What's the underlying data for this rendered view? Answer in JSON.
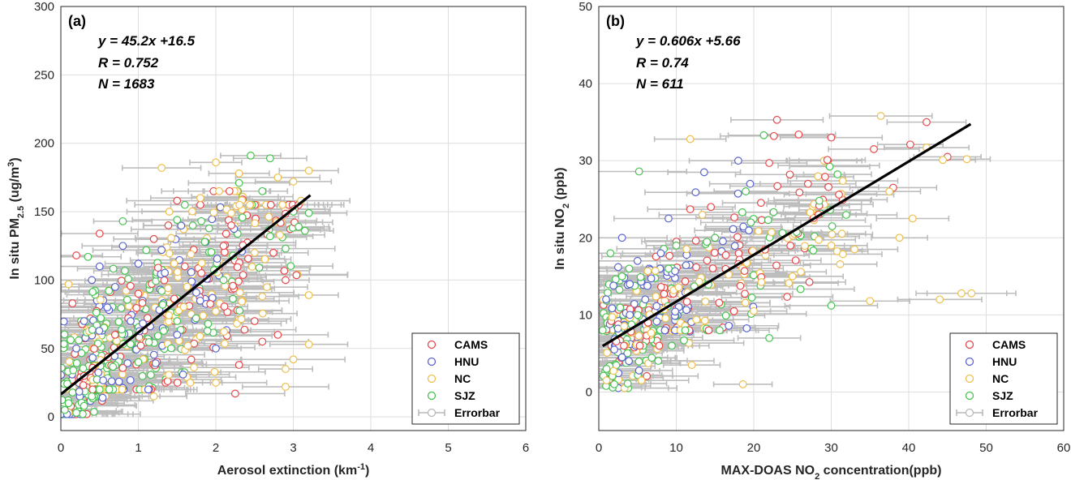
{
  "chart_data": [
    {
      "type": "scatter",
      "panel_label": "(a)",
      "equation": "y = 45.2x +16.5",
      "r_text": "R = 0.752",
      "n_text": "N = 1683",
      "xlabel_main": "Aerosol extinction (km",
      "xlabel_sup": "-1",
      "xlabel_end": ")",
      "ylabel_main": "In situ PM",
      "ylabel_sub": "2.5",
      "ylabel_mid": " (ug/m",
      "ylabel_sup": "3",
      "ylabel_end": ")",
      "xlim": [
        0,
        6
      ],
      "ylim": [
        -10,
        300
      ],
      "xticks": [
        0,
        1,
        2,
        3,
        4,
        5,
        6
      ],
      "yticks": [
        0,
        50,
        100,
        150,
        200,
        250,
        300
      ],
      "fit": {
        "slope": 45.2,
        "intercept": 16.5,
        "x_range": [
          0,
          3.22
        ]
      },
      "legend": [
        {
          "label": "CAMS",
          "color": "#e8474a"
        },
        {
          "label": "HNU",
          "color": "#5a64d0"
        },
        {
          "label": "NC",
          "color": "#eebf4a"
        },
        {
          "label": "SJZ",
          "color": "#46c350"
        },
        {
          "label": "Errorbar",
          "color": "#b9b9b9"
        }
      ],
      "legend_position": "bottom-right",
      "grid": true,
      "series": [
        {
          "name": "CAMS",
          "color": "#e8474a",
          "points": [
            [
              0.2,
              118
            ],
            [
              0.5,
              134
            ],
            [
              0.15,
              83
            ],
            [
              1.5,
              158
            ],
            [
              1.8,
              155
            ],
            [
              2.2,
              140
            ],
            [
              2.1,
              125
            ],
            [
              2.3,
              38
            ],
            [
              2.5,
              70
            ],
            [
              2.9,
              100
            ],
            [
              1.0,
              90
            ],
            [
              0.7,
              60
            ],
            [
              0.3,
              30
            ],
            [
              2.25,
              17
            ],
            [
              1.6,
              110
            ],
            [
              2.6,
              55
            ],
            [
              1.2,
              130
            ],
            [
              2.8,
              60
            ]
          ]
        },
        {
          "name": "HNU",
          "color": "#5a64d0",
          "points": [
            [
              0.5,
              110
            ],
            [
              0.4,
              100
            ],
            [
              0.8,
              125
            ],
            [
              1.0,
              112
            ],
            [
              0.6,
              80
            ],
            [
              0.3,
              70
            ],
            [
              0.2,
              50
            ],
            [
              0.9,
              70
            ],
            [
              1.5,
              60
            ],
            [
              2.0,
              50
            ],
            [
              0.7,
              95
            ],
            [
              1.3,
              122
            ]
          ]
        },
        {
          "name": "NC",
          "color": "#eebf4a",
          "points": [
            [
              1.3,
              182
            ],
            [
              2.0,
              186
            ],
            [
              2.3,
              178
            ],
            [
              2.8,
              175
            ],
            [
              3.0,
              172
            ],
            [
              3.2,
              180
            ],
            [
              3.2,
              89
            ],
            [
              3.2,
              53
            ],
            [
              3.0,
              42
            ],
            [
              2.9,
              22
            ],
            [
              2.9,
              35
            ],
            [
              1.2,
              15
            ],
            [
              2.0,
              25
            ],
            [
              2.5,
              120
            ],
            [
              1.8,
              160
            ],
            [
              3.1,
              158
            ],
            [
              0.1,
              97
            ],
            [
              1.4,
              150
            ],
            [
              2.6,
              88
            ]
          ]
        },
        {
          "name": "SJZ",
          "color": "#46c350",
          "points": [
            [
              2.45,
              191
            ],
            [
              2.7,
              189
            ],
            [
              2.6,
              165
            ],
            [
              3.0,
              150
            ],
            [
              3.15,
              136
            ],
            [
              3.2,
              149
            ],
            [
              0.35,
              117
            ],
            [
              0.8,
              143
            ],
            [
              1.5,
              144
            ],
            [
              2.3,
              171
            ],
            [
              1.6,
              155
            ],
            [
              0.05,
              5
            ],
            [
              0.1,
              10
            ],
            [
              0.2,
              3
            ],
            [
              0.3,
              8
            ],
            [
              0.4,
              15
            ],
            [
              0.5,
              20
            ],
            [
              1.0,
              40
            ],
            [
              1.5,
              70
            ],
            [
              2.1,
              100
            ],
            [
              2.9,
              123
            ],
            [
              1.9,
              68
            ],
            [
              2.7,
              132
            ]
          ]
        }
      ],
      "dense": [
        {
          "colors": [
            "#46c350",
            "#46c350",
            "#46c350",
            "#eebf4a",
            "#e8474a",
            "#5a64d0"
          ],
          "x_range": [
            0,
            0.6
          ],
          "y_range": [
            2,
            90
          ],
          "count": 160
        },
        {
          "colors": [
            "#46c350",
            "#46c350",
            "#eebf4a",
            "#e8474a",
            "#5a64d0"
          ],
          "x_range": [
            0.4,
            1.4
          ],
          "y_range": [
            20,
            140
          ],
          "count": 180
        },
        {
          "colors": [
            "#46c350",
            "#eebf4a",
            "#eebf4a",
            "#e8474a",
            "#5a64d0"
          ],
          "x_range": [
            1.2,
            2.4
          ],
          "y_range": [
            25,
            165
          ],
          "count": 160
        },
        {
          "colors": [
            "#46c350",
            "#eebf4a",
            "#e8474a"
          ],
          "x_range": [
            2.2,
            3.1
          ],
          "y_range": [
            30,
            155
          ],
          "count": 60
        }
      ]
    },
    {
      "type": "scatter",
      "panel_label": "(b)",
      "equation": "y = 0.606x +5.66",
      "r_text": "R = 0.74",
      "n_text": "N = 611",
      "xlabel_main": "MAX-DOAS NO",
      "xlabel_sub": "2",
      "xlabel_end": " concentration(ppb)",
      "ylabel_main": "In situ NO",
      "ylabel_sub": "2",
      "ylabel_end": " (ppb)",
      "xlim": [
        0,
        60
      ],
      "ylim": [
        -5,
        50
      ],
      "xticks": [
        0,
        10,
        20,
        30,
        40,
        50,
        60
      ],
      "yticks": [
        0,
        10,
        20,
        30,
        40,
        50
      ],
      "fit": {
        "slope": 0.606,
        "intercept": 5.66,
        "x_range": [
          0.5,
          48
        ]
      },
      "legend": [
        {
          "label": "CAMS",
          "color": "#e8474a"
        },
        {
          "label": "HNU",
          "color": "#5a64d0"
        },
        {
          "label": "NC",
          "color": "#eebf4a"
        },
        {
          "label": "SJZ",
          "color": "#46c350"
        },
        {
          "label": "Errorbar",
          "color": "#b9b9b9"
        }
      ],
      "legend_position": "bottom-right",
      "grid": true,
      "series": [
        {
          "name": "CAMS",
          "color": "#e8474a",
          "points": [
            [
              23,
              35.3
            ],
            [
              22.6,
              33.2
            ],
            [
              25.8,
              33.4
            ],
            [
              30,
              33
            ],
            [
              42.3,
              35
            ],
            [
              40.2,
              32.1
            ],
            [
              35.5,
              31.5
            ],
            [
              45,
              30.5
            ],
            [
              29.5,
              30.1
            ],
            [
              22,
              29.7
            ],
            [
              38,
              26.5
            ],
            [
              11.8,
              23.7
            ],
            [
              31,
              25.6
            ],
            [
              27,
              27
            ]
          ]
        },
        {
          "name": "HNU",
          "color": "#5a64d0",
          "points": [
            [
              18,
              30
            ],
            [
              13.6,
              28.5
            ],
            [
              1.9,
              13.8
            ],
            [
              2.5,
              16.2
            ],
            [
              5,
              17
            ],
            [
              9,
              22.5
            ],
            [
              3,
              20
            ],
            [
              2,
              5.5
            ],
            [
              3,
              4.5
            ],
            [
              4,
              10
            ],
            [
              6,
              12
            ],
            [
              8,
              18
            ],
            [
              12.5,
              25.9
            ],
            [
              4,
              14
            ]
          ]
        },
        {
          "name": "NC",
          "color": "#eebf4a",
          "points": [
            [
              36.4,
              35.8
            ],
            [
              11.8,
              32.8
            ],
            [
              42.3,
              31.7
            ],
            [
              44.4,
              30.1
            ],
            [
              47.5,
              30.2
            ],
            [
              37.5,
              26
            ],
            [
              40.5,
              22.5
            ],
            [
              38.8,
              20
            ],
            [
              46.8,
              12.8
            ],
            [
              48.1,
              12.8
            ],
            [
              44,
              12
            ],
            [
              35,
              11.8
            ],
            [
              18.6,
              1
            ],
            [
              12,
              3.5
            ],
            [
              1,
              1.5
            ],
            [
              5.5,
              1.5
            ],
            [
              30,
              19
            ],
            [
              33,
              18.5
            ],
            [
              25,
              15
            ],
            [
              20,
              10.5
            ]
          ]
        },
        {
          "name": "SJZ",
          "color": "#46c350",
          "points": [
            [
              21.3,
              33.3
            ],
            [
              5.2,
              28.6
            ],
            [
              1.5,
              18
            ],
            [
              3,
              15
            ],
            [
              5,
              10
            ],
            [
              1,
              3
            ],
            [
              2,
              1
            ],
            [
              0.5,
              8
            ],
            [
              30,
              11.2
            ],
            [
              22,
              7
            ],
            [
              9,
              16
            ],
            [
              10,
              19
            ],
            [
              15,
              20
            ]
          ]
        }
      ],
      "dense": [
        {
          "colors": [
            "#46c350",
            "#46c350",
            "#5a64d0",
            "#eebf4a",
            "#e8474a"
          ],
          "x_range": [
            0.5,
            8
          ],
          "y_range": [
            0.5,
            16
          ],
          "count": 130
        },
        {
          "colors": [
            "#5a64d0",
            "#5a64d0",
            "#46c350",
            "#eebf4a",
            "#e8474a"
          ],
          "x_range": [
            1.5,
            12
          ],
          "y_range": [
            6,
            22
          ],
          "count": 100
        },
        {
          "colors": [
            "#e8474a",
            "#eebf4a",
            "#5a64d0",
            "#46c350"
          ],
          "x_range": [
            8,
            20
          ],
          "y_range": [
            8,
            27
          ],
          "count": 90
        },
        {
          "colors": [
            "#e8474a",
            "#eebf4a",
            "#eebf4a",
            "#46c350"
          ],
          "x_range": [
            18,
            32
          ],
          "y_range": [
            12,
            30
          ],
          "count": 80
        }
      ]
    }
  ]
}
